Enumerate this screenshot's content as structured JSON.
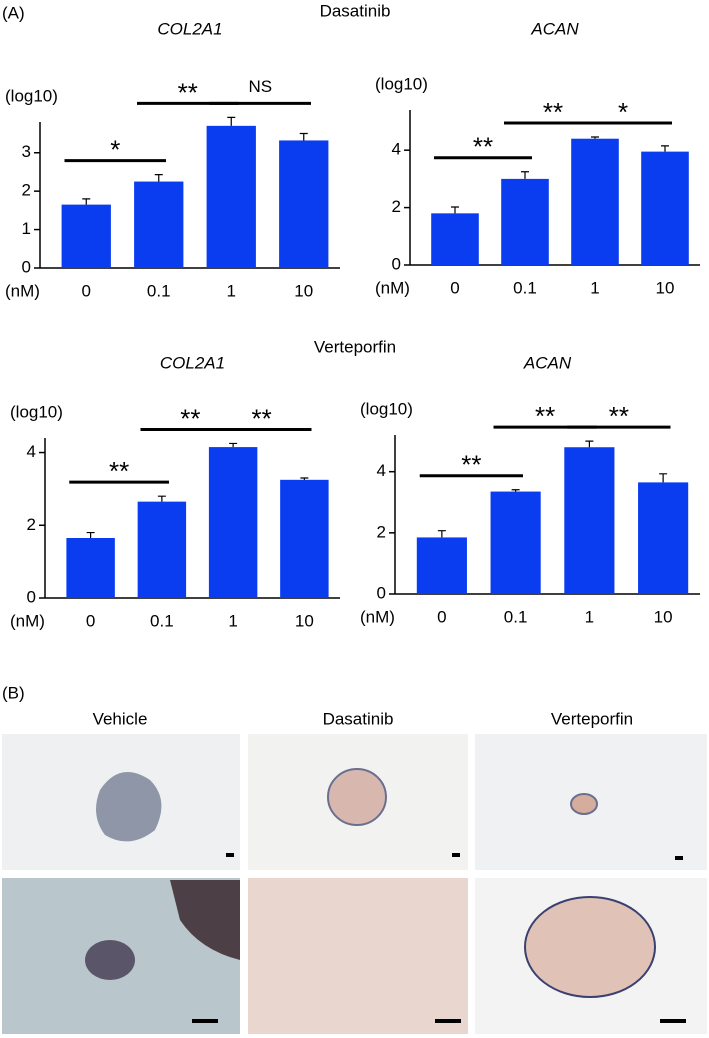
{
  "panel_a": "(A)",
  "groups": [
    "Dasatinib",
    "Verteporfin"
  ],
  "panel_b": "(B)",
  "images": [
    "Vehicle",
    "Dasatinib",
    "Verteporfin"
  ],
  "chart_data": [
    {
      "type": "bar",
      "title": "COL2A1",
      "y_label": "(log10)",
      "x_label": "(nM)",
      "categories": [
        "0",
        "0.1",
        "1",
        "10"
      ],
      "values": [
        1.65,
        2.25,
        3.7,
        3.32
      ],
      "errors": [
        0.15,
        0.18,
        0.22,
        0.18
      ],
      "color": "#0a3cf0",
      "ylim": [
        0,
        3.8
      ],
      "yticks": [
        0,
        1,
        2,
        3
      ],
      "annotations": [
        {
          "label": "*",
          "between": [
            "0",
            "0.1"
          ]
        },
        {
          "label": "**",
          "between": [
            "0.1",
            "1"
          ]
        },
        {
          "label": "NS",
          "between": [
            "1",
            "10"
          ]
        }
      ]
    },
    {
      "type": "bar",
      "title": "ACAN",
      "y_label": "(log10)",
      "x_label": "(nM)",
      "categories": [
        "0",
        "0.1",
        "1",
        "10"
      ],
      "values": [
        1.8,
        3.0,
        4.4,
        3.95
      ],
      "errors": [
        0.22,
        0.25,
        0.06,
        0.2
      ],
      "color": "#0a3cf0",
      "ylim": [
        0,
        5.4
      ],
      "yticks": [
        0,
        2,
        4
      ],
      "annotations": [
        {
          "label": "**",
          "between": [
            "0",
            "0.1"
          ]
        },
        {
          "label": "**",
          "between": [
            "0.1",
            "1"
          ]
        },
        {
          "label": "*",
          "between": [
            "1",
            "10"
          ]
        }
      ]
    },
    {
      "type": "bar",
      "title": "COL2A1",
      "y_label": "(log10)",
      "x_label": "(nM)",
      "categories": [
        "0",
        "0.1",
        "1",
        "10"
      ],
      "values": [
        1.65,
        2.65,
        4.15,
        3.25
      ],
      "errors": [
        0.15,
        0.15,
        0.1,
        0.05
      ],
      "color": "#0a3cf0",
      "ylim": [
        0,
        4.4
      ],
      "yticks": [
        0,
        2,
        4
      ],
      "annotations": [
        {
          "label": "**",
          "between": [
            "0",
            "0.1"
          ]
        },
        {
          "label": "**",
          "between": [
            "0.1",
            "1"
          ]
        },
        {
          "label": "**",
          "between": [
            "1",
            "10"
          ]
        }
      ]
    },
    {
      "type": "bar",
      "title": "ACAN",
      "y_label": "(log10)",
      "x_label": "(nM)",
      "categories": [
        "0",
        "0.1",
        "1",
        "10"
      ],
      "values": [
        1.85,
        3.35,
        4.8,
        3.65
      ],
      "errors": [
        0.22,
        0.06,
        0.2,
        0.28
      ],
      "color": "#0a3cf0",
      "ylim": [
        0,
        5.2
      ],
      "yticks": [
        0,
        2,
        4
      ],
      "annotations": [
        {
          "label": "**",
          "between": [
            "0",
            "0.1"
          ]
        },
        {
          "label": "**",
          "between": [
            "0.1",
            "1"
          ]
        },
        {
          "label": "**",
          "between": [
            "1",
            "10"
          ]
        }
      ]
    }
  ]
}
